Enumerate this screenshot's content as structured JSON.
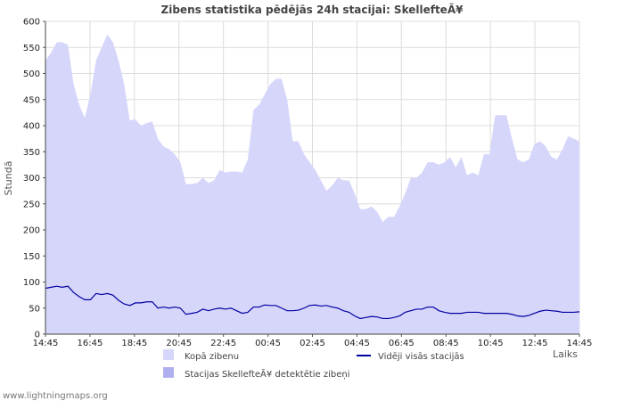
{
  "chart_data": {
    "type": "area",
    "title": "Zibens statistika pēdējās 24h stacijai: SkellefteÃ¥",
    "ylabel": "Stundā",
    "xlabel": "Laiks",
    "ylim": [
      0,
      600
    ],
    "yticks": [
      0,
      50,
      100,
      150,
      200,
      250,
      300,
      350,
      400,
      450,
      500,
      550,
      600
    ],
    "xtick_labels": [
      "14:45",
      "16:45",
      "18:45",
      "20:45",
      "22:45",
      "00:45",
      "02:45",
      "04:45",
      "06:45",
      "08:45",
      "10:45",
      "12:45",
      "14:45"
    ],
    "x_interval_minutes": 15,
    "series": [
      {
        "name": "Kopā zibenu",
        "kind": "area",
        "color": "#d6d6fb",
        "values": [
          525,
          540,
          560,
          560,
          555,
          480,
          440,
          415,
          460,
          525,
          550,
          575,
          560,
          525,
          480,
          410,
          412,
          400,
          405,
          408,
          375,
          360,
          355,
          345,
          330,
          288,
          288,
          290,
          300,
          290,
          295,
          315,
          310,
          312,
          312,
          310,
          335,
          430,
          440,
          460,
          480,
          490,
          490,
          450,
          370,
          370,
          345,
          330,
          315,
          295,
          275,
          285,
          300,
          295,
          295,
          270,
          240,
          240,
          245,
          235,
          215,
          225,
          225,
          245,
          270,
          300,
          300,
          310,
          330,
          330,
          325,
          330,
          340,
          320,
          340,
          305,
          310,
          305,
          345,
          345,
          420,
          420,
          420,
          375,
          335,
          330,
          335,
          365,
          370,
          360,
          340,
          335,
          355,
          380,
          375,
          370
        ]
      },
      {
        "name": "Stacijas SkellefteÃ¥ detektētie zibeņi",
        "kind": "area",
        "color": "#b0b0f0",
        "values": []
      },
      {
        "name": "Vidēji visās stacijās",
        "kind": "line",
        "color": "#0000a0",
        "values": [
          88,
          90,
          92,
          90,
          92,
          80,
          72,
          66,
          66,
          78,
          76,
          78,
          75,
          65,
          58,
          55,
          60,
          60,
          62,
          62,
          50,
          52,
          50,
          52,
          50,
          38,
          40,
          42,
          48,
          45,
          48,
          50,
          48,
          50,
          45,
          40,
          42,
          52,
          52,
          56,
          55,
          55,
          50,
          45,
          45,
          46,
          50,
          55,
          56,
          54,
          55,
          52,
          50,
          45,
          42,
          35,
          30,
          32,
          34,
          33,
          30,
          30,
          32,
          35,
          42,
          45,
          48,
          48,
          52,
          52,
          45,
          42,
          40,
          40,
          40,
          42,
          42,
          42,
          40,
          40,
          40,
          40,
          40,
          38,
          35,
          34,
          36,
          40,
          44,
          46,
          45,
          44,
          42,
          42,
          42,
          43
        ]
      }
    ],
    "legend": {
      "area1": "Kopā zibenu",
      "area2": "Stacijas SkellefteÃ¥ detektētie zibeņi",
      "line": "Vidēji visās stacijās"
    }
  },
  "footer": "www.lightningmaps.org"
}
